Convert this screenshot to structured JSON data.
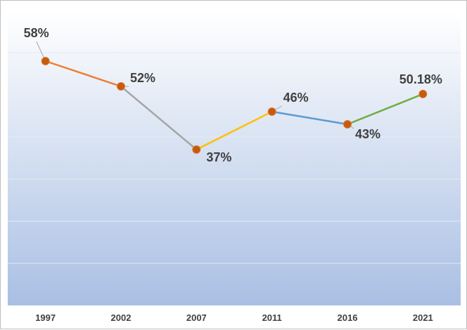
{
  "chart_data": {
    "type": "line",
    "title": "",
    "xlabel": "",
    "ylabel": "",
    "categories": [
      "1997",
      "2002",
      "2007",
      "2011",
      "2016",
      "2021"
    ],
    "values": [
      58,
      52,
      37,
      46,
      43,
      50.18
    ],
    "data_labels": [
      "58%",
      "52%",
      "37%",
      "46%",
      "43%",
      "50.18%"
    ],
    "ylim": [
      0,
      70
    ],
    "grid": true,
    "legend": "none",
    "segment_colors": [
      "#ed7d31",
      "#a5a5a5",
      "#ffc000",
      "#5b9bd5",
      "#70ad47"
    ],
    "marker_color": "#c55a11",
    "plot_gradient": [
      "#ffffff",
      "#a9bfe3"
    ]
  }
}
